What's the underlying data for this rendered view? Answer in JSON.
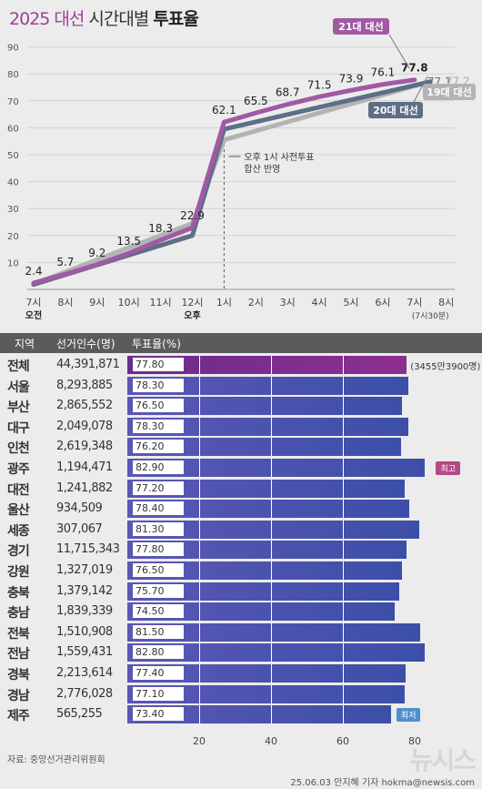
{
  "title": {
    "year": "2025",
    "word1": "대선",
    "word2": "시간대별",
    "word3": "투표율"
  },
  "chart_data": [
    {
      "type": "line",
      "title": "2025 대선 시간대별 투표율",
      "x_ticks": [
        "7시",
        "8시",
        "9시",
        "10시",
        "11시",
        "12시",
        "1시",
        "2시",
        "3시",
        "4시",
        "5시",
        "6시",
        "7시",
        "8시"
      ],
      "x_sub": {
        "am": "오전",
        "pm": "오후",
        "end": "(7시30분)"
      },
      "y_ticks": [
        10,
        20,
        30,
        40,
        50,
        60,
        70,
        80,
        90
      ],
      "ylim": [
        0,
        90
      ],
      "series": [
        {
          "name": "21대 대선",
          "color": "#a05aa4",
          "x": [
            0,
            1,
            2,
            3,
            4,
            5,
            6,
            7,
            8,
            9,
            10,
            11,
            12
          ],
          "values": [
            2.4,
            5.7,
            9.2,
            13.5,
            18.3,
            22.9,
            62.1,
            65.5,
            68.7,
            71.5,
            73.9,
            76.1,
            77.8
          ]
        },
        {
          "name": "20대 대선",
          "color": "#5d6e86",
          "x": [
            0,
            5,
            6,
            12.5
          ],
          "values": [
            1.8,
            20.0,
            59.5,
            77.1
          ]
        },
        {
          "name": "19대 대선",
          "color": "#b3b3b3",
          "x": [
            0,
            5,
            6,
            12.5
          ],
          "values": [
            2.0,
            24.5,
            55.5,
            77.2
          ]
        }
      ],
      "point_labels": [
        "2.4",
        "5.7",
        "9.2",
        "13.5",
        "18.3",
        "22.9",
        "62.1",
        "65.5",
        "68.7",
        "71.5",
        "73.9",
        "76.1",
        "77.8"
      ],
      "end_labels": {
        "s20": "77.1",
        "s19": "77.2"
      },
      "annotation": {
        "line1": "오후 1시 사전투표",
        "line2": "합산 반영"
      }
    },
    {
      "type": "bar",
      "columns": {
        "region": "지역",
        "voters": "선거인수(명)",
        "rate": "투표율(%)"
      },
      "rows": [
        {
          "region": "전체",
          "voters": "44,391,871",
          "rate": "77.80",
          "value": 77.8
        },
        {
          "region": "서울",
          "voters": "8,293,885",
          "rate": "78.30",
          "value": 78.3
        },
        {
          "region": "부산",
          "voters": "2,865,552",
          "rate": "76.50",
          "value": 76.5
        },
        {
          "region": "대구",
          "voters": "2,049,078",
          "rate": "78.30",
          "value": 78.3
        },
        {
          "region": "인천",
          "voters": "2,619,348",
          "rate": "76.20",
          "value": 76.2
        },
        {
          "region": "광주",
          "voters": "1,194,471",
          "rate": "82.90",
          "value": 82.9
        },
        {
          "region": "대전",
          "voters": "1,241,882",
          "rate": "77.20",
          "value": 77.2
        },
        {
          "region": "울산",
          "voters": "934,509",
          "rate": "78.40",
          "value": 78.4
        },
        {
          "region": "세종",
          "voters": "307,067",
          "rate": "81.30",
          "value": 81.3
        },
        {
          "region": "경기",
          "voters": "11,715,343",
          "rate": "77.80",
          "value": 77.8
        },
        {
          "region": "강원",
          "voters": "1,327,019",
          "rate": "76.50",
          "value": 76.5
        },
        {
          "region": "충북",
          "voters": "1,379,142",
          "rate": "75.70",
          "value": 75.7
        },
        {
          "region": "충남",
          "voters": "1,839,339",
          "rate": "74.50",
          "value": 74.5
        },
        {
          "region": "전북",
          "voters": "1,510,908",
          "rate": "81.50",
          "value": 81.5
        },
        {
          "region": "전남",
          "voters": "1,559,431",
          "rate": "82.80",
          "value": 82.8
        },
        {
          "region": "경북",
          "voters": "2,213,614",
          "rate": "77.40",
          "value": 77.4
        },
        {
          "region": "경남",
          "voters": "2,776,028",
          "rate": "77.10",
          "value": 77.1
        },
        {
          "region": "제주",
          "voters": "565,255",
          "rate": "73.40",
          "value": 73.4
        }
      ],
      "total_note": "(3455만3900명)",
      "tag_max": "최고",
      "tag_min": "최저",
      "x_ticks": [
        20,
        40,
        60,
        80
      ],
      "xlim": [
        0,
        80
      ]
    }
  ],
  "footer": {
    "source": "자료: 중앙선거관리위원회",
    "credit": "25.06.03 안지혜 기자 hokma@newsis.com",
    "watermark": "뉴시스"
  },
  "colors": {
    "s21": "#a05aa4",
    "s20": "#5d6e86",
    "s19": "#b3b3b3",
    "max_tag": "#b34a86",
    "min_tag": "#4f8fd0"
  }
}
